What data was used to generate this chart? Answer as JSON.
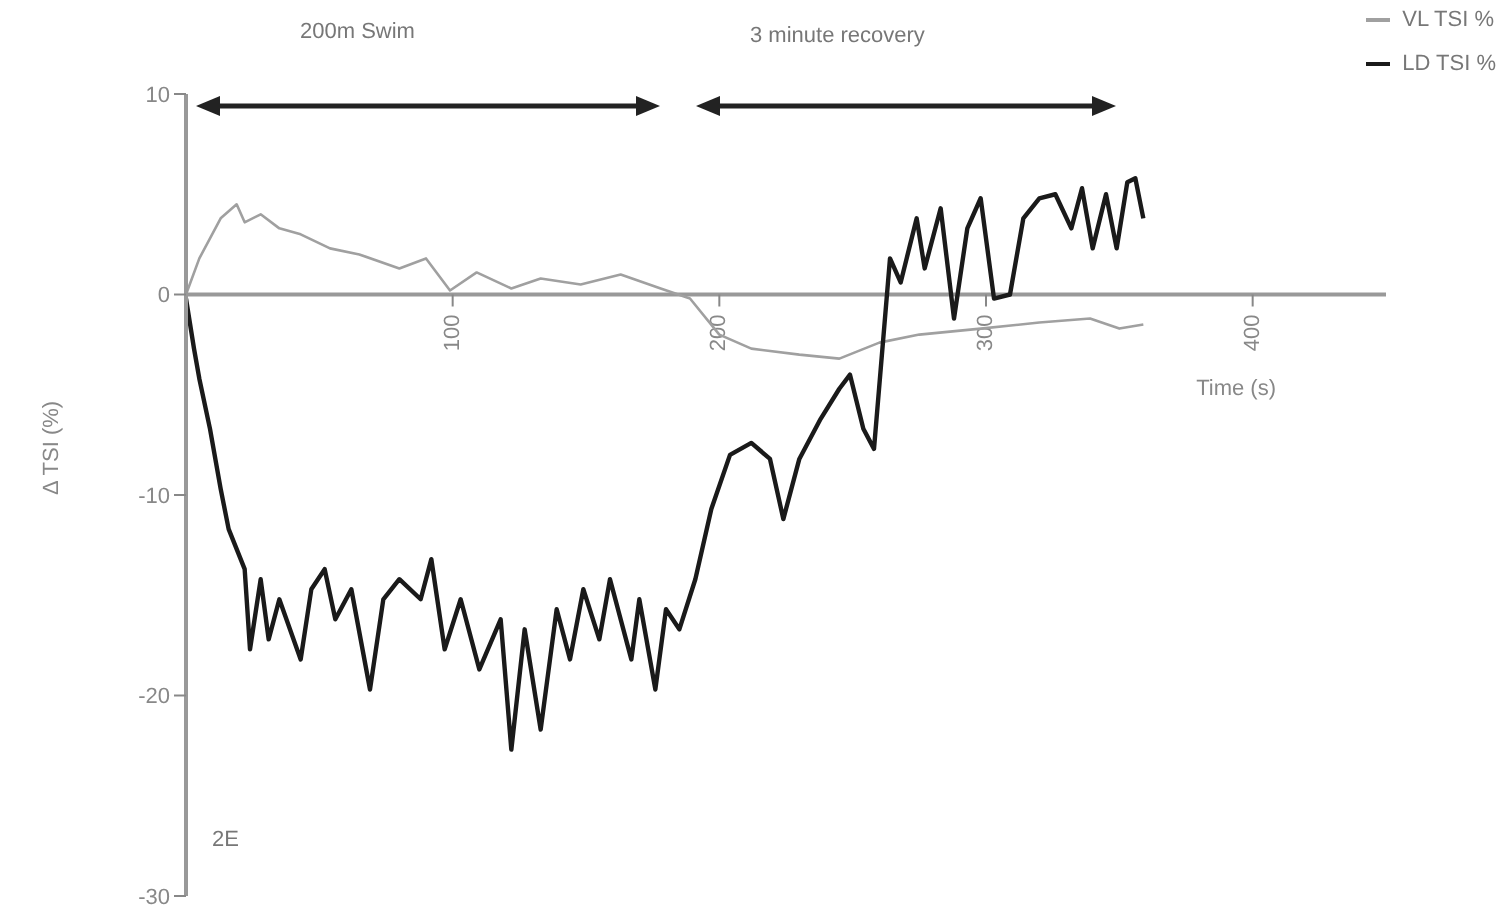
{
  "chart_data": {
    "type": "line",
    "xlabel": "Time (s)",
    "ylabel": "Δ TSI (%)",
    "annotations": [
      "200m Swim",
      "3 minute recovery",
      "2E"
    ],
    "xlim": [
      0,
      450
    ],
    "xticks": [
      100,
      200,
      300,
      400
    ],
    "ylim": [
      -30,
      10
    ],
    "yticks": [
      -30,
      -20,
      -10,
      0,
      10
    ],
    "legend": "top right",
    "marker": "none",
    "line_style": "solid",
    "series": [
      {
        "name": "VL TSI %",
        "color": "#a0a0a0",
        "x": [
          0,
          5,
          13,
          19,
          22,
          28,
          35,
          43,
          54,
          65,
          80,
          90,
          99,
          109,
          122,
          133,
          148,
          163,
          178,
          189,
          200,
          212,
          230,
          245,
          260,
          275,
          298,
          320,
          339,
          350,
          359
        ],
        "values": [
          0,
          1.8,
          3.8,
          4.5,
          3.6,
          4,
          3.3,
          3,
          2.3,
          2,
          1.3,
          1.8,
          0.2,
          1.1,
          0.3,
          0.8,
          0.5,
          1,
          0.3,
          -0.2,
          -2,
          -2.7,
          -3,
          -3.2,
          -2.4,
          -2,
          -1.7,
          -1.4,
          -1.2,
          -1.7,
          -1.5
        ]
      },
      {
        "name": "LD TSI %",
        "color": "#1a1a1a",
        "x": [
          0,
          3,
          5,
          9,
          13,
          16,
          22,
          24,
          28,
          31,
          35,
          43,
          47,
          52,
          56,
          62,
          69,
          74,
          80,
          88,
          92,
          97,
          103,
          110,
          118,
          122,
          127,
          133,
          139,
          144,
          149,
          155,
          159,
          167,
          170,
          176,
          180,
          185,
          191,
          197,
          204,
          212,
          219,
          224,
          230,
          238,
          245,
          249,
          254,
          258,
          264,
          268,
          274,
          277,
          283,
          288,
          293,
          298,
          303,
          309,
          314,
          320,
          326,
          332,
          336,
          340,
          345,
          349,
          353,
          356,
          359
        ],
        "values": [
          -0.2,
          -2.7,
          -4.2,
          -6.7,
          -9.7,
          -11.7,
          -13.7,
          -17.7,
          -14.2,
          -17.2,
          -15.2,
          -18.2,
          -14.7,
          -13.7,
          -16.2,
          -14.7,
          -19.7,
          -15.2,
          -14.2,
          -15.2,
          -13.2,
          -17.7,
          -15.2,
          -18.7,
          -16.2,
          -22.7,
          -16.7,
          -21.7,
          -15.7,
          -18.2,
          -14.7,
          -17.2,
          -14.2,
          -18.2,
          -15.2,
          -19.7,
          -15.7,
          -16.7,
          -14.2,
          -10.7,
          -8,
          -7.4,
          -8.2,
          -11.2,
          -8.2,
          -6.2,
          -4.7,
          -4,
          -6.7,
          -7.7,
          1.8,
          0.6,
          3.8,
          1.3,
          4.3,
          -1.2,
          3.3,
          4.8,
          -0.2,
          0,
          3.8,
          4.8,
          5,
          3.3,
          5.3,
          2.3,
          5,
          2.3,
          5.6,
          5.8,
          3.8
        ]
      }
    ]
  }
}
